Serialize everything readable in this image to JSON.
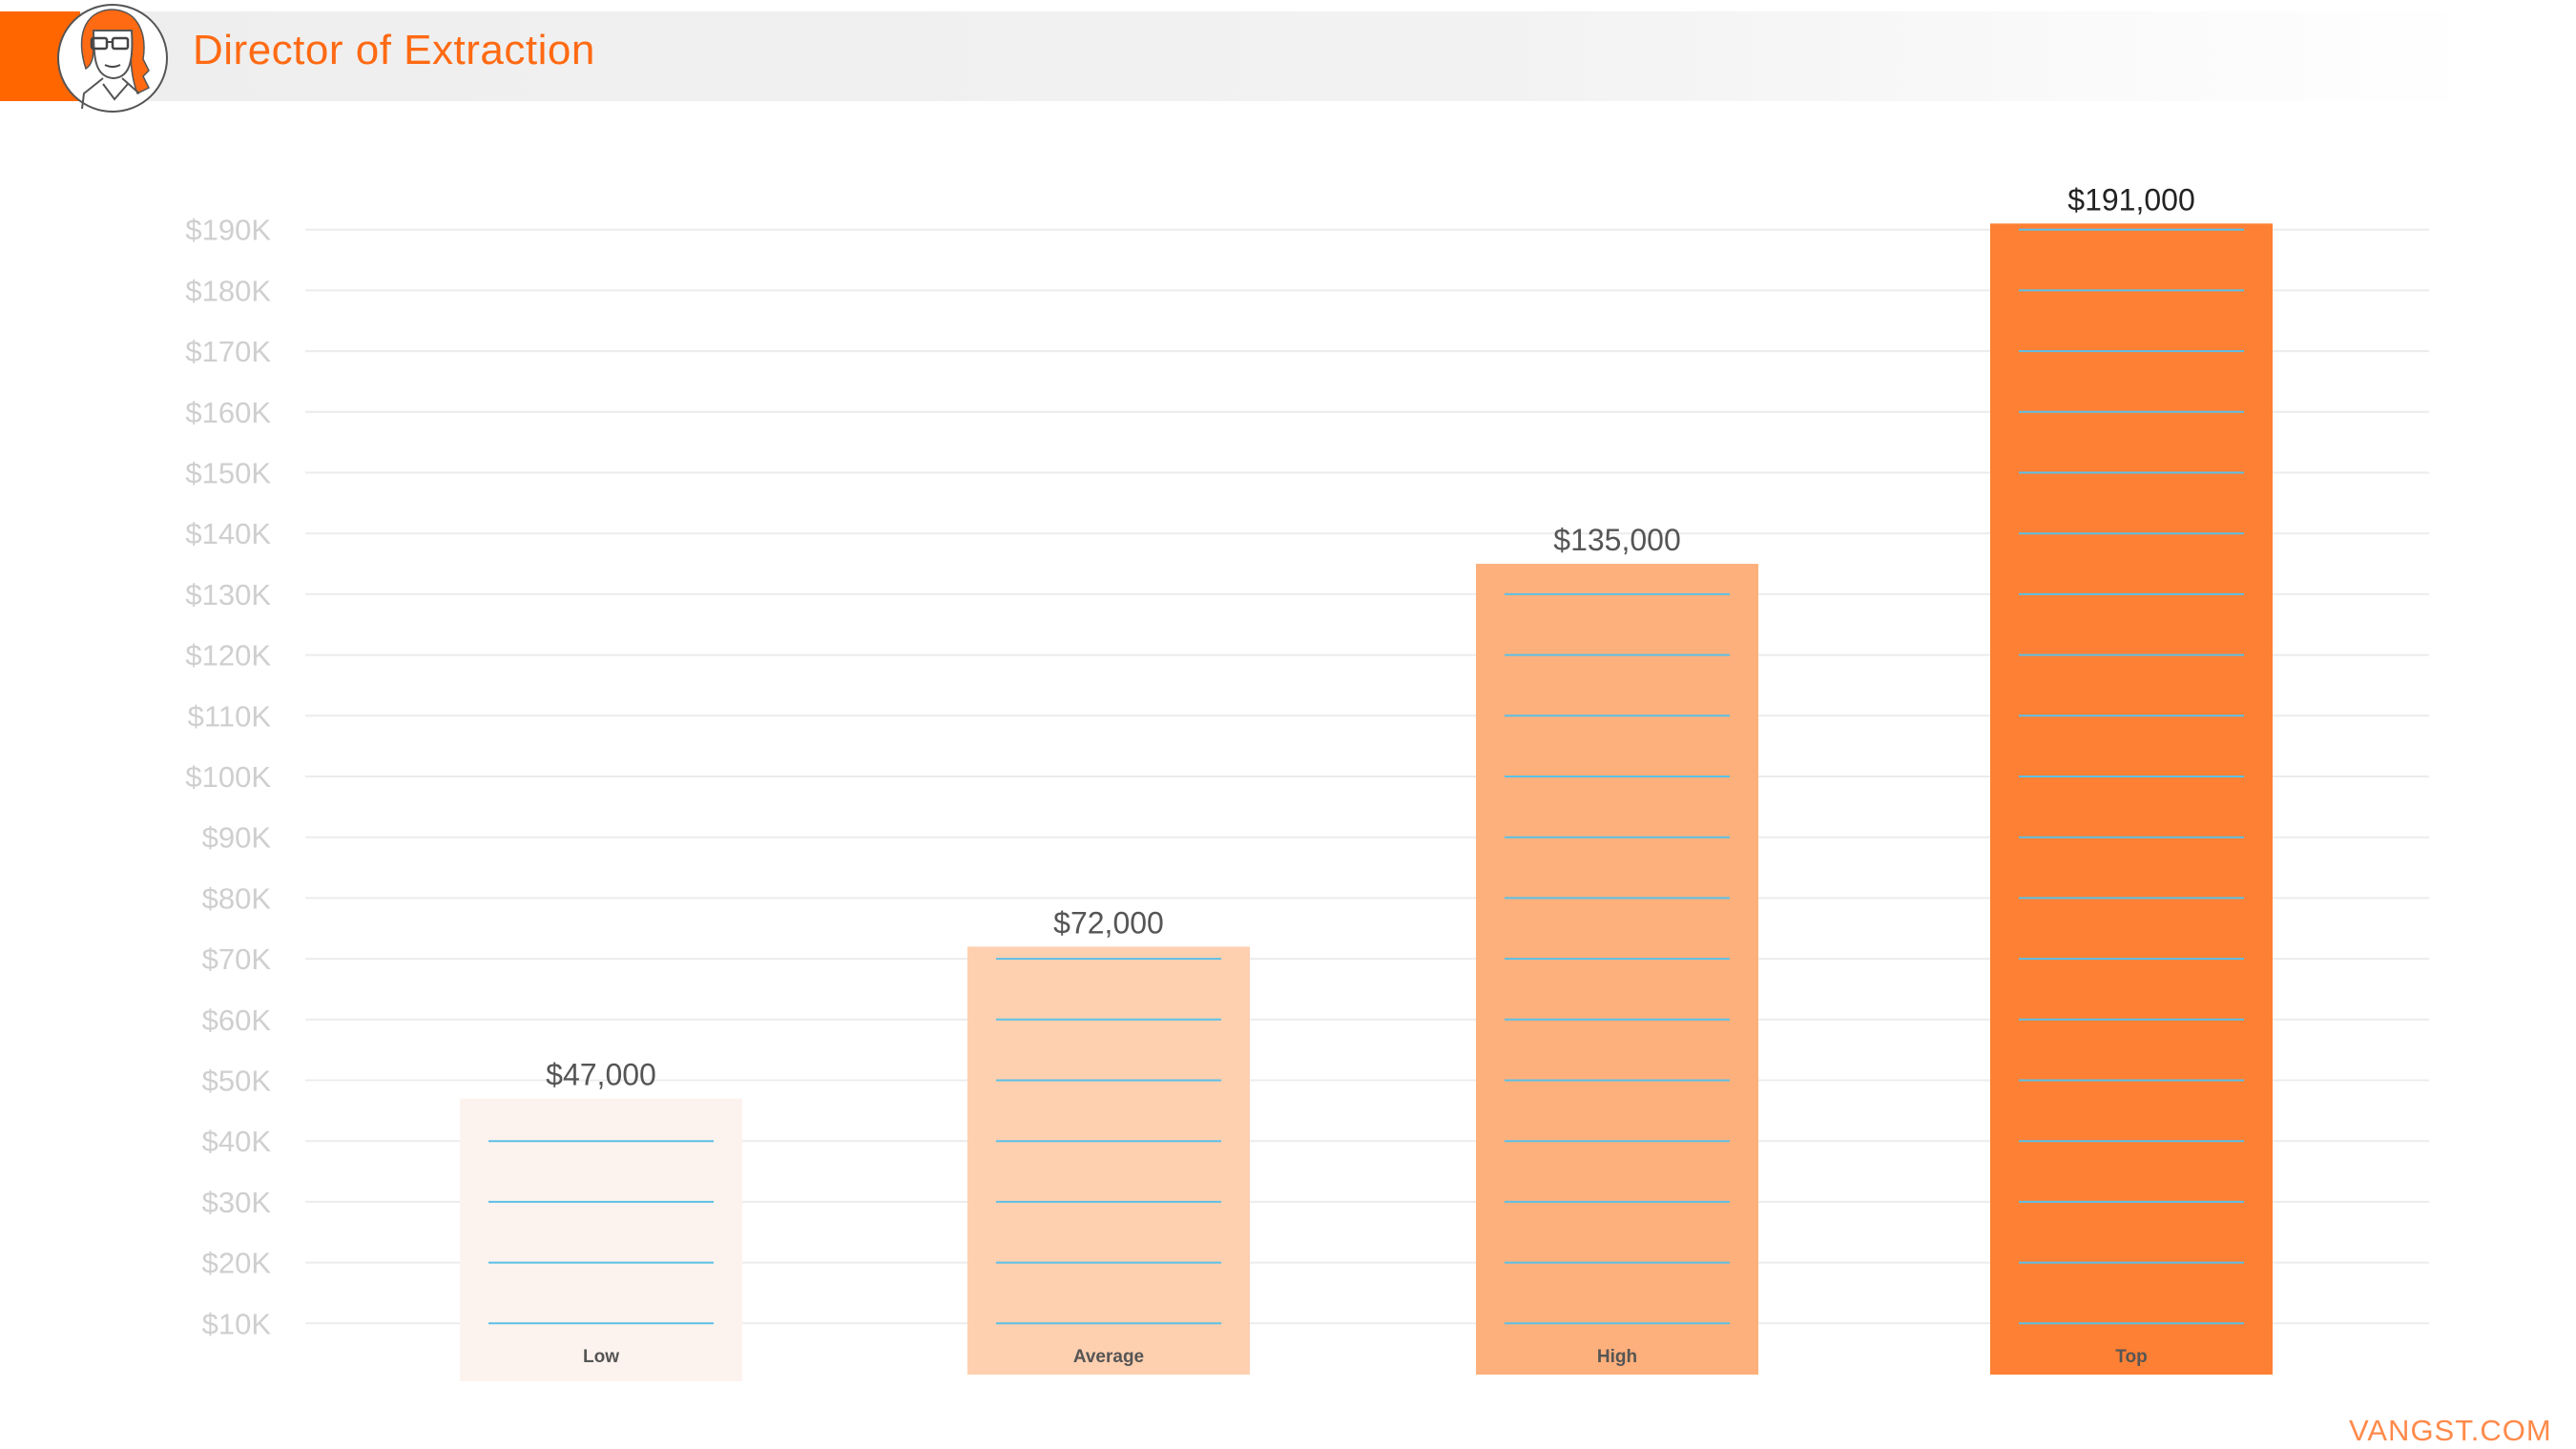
{
  "header": {
    "title": "Director of Extraction",
    "avatar_icon": "woman-with-glasses-avatar-icon"
  },
  "footer": {
    "brand": "VANGST.COM"
  },
  "chart_data": {
    "type": "bar",
    "title": "",
    "xlabel": "",
    "ylabel": "",
    "categories": [
      "Low",
      "Average",
      "High",
      "Top"
    ],
    "values": [
      47000,
      72000,
      135000,
      191000
    ],
    "value_labels": [
      "$47,000",
      "$72,000",
      "$135,000",
      "$191,000"
    ],
    "bar_colors": [
      "#fdf3ee",
      "#fed0b0",
      "#feb07c",
      "#fe8034"
    ],
    "ylim": [
      0,
      190000
    ],
    "yticks": [
      10000,
      20000,
      30000,
      40000,
      50000,
      60000,
      70000,
      80000,
      90000,
      100000,
      110000,
      120000,
      130000,
      140000,
      150000,
      160000,
      170000,
      180000,
      190000
    ],
    "ytick_labels": [
      "$10K",
      "$20K",
      "$30K",
      "$40K",
      "$50K",
      "$60K",
      "$70K",
      "$80K",
      "$90K",
      "$100K",
      "$110K",
      "$120K",
      "$130K",
      "$140K",
      "$150K",
      "$160K",
      "$170K",
      "$180K",
      "$190K"
    ],
    "grid": true,
    "legend": "none",
    "inner_line_color": "#5bc0e6"
  }
}
